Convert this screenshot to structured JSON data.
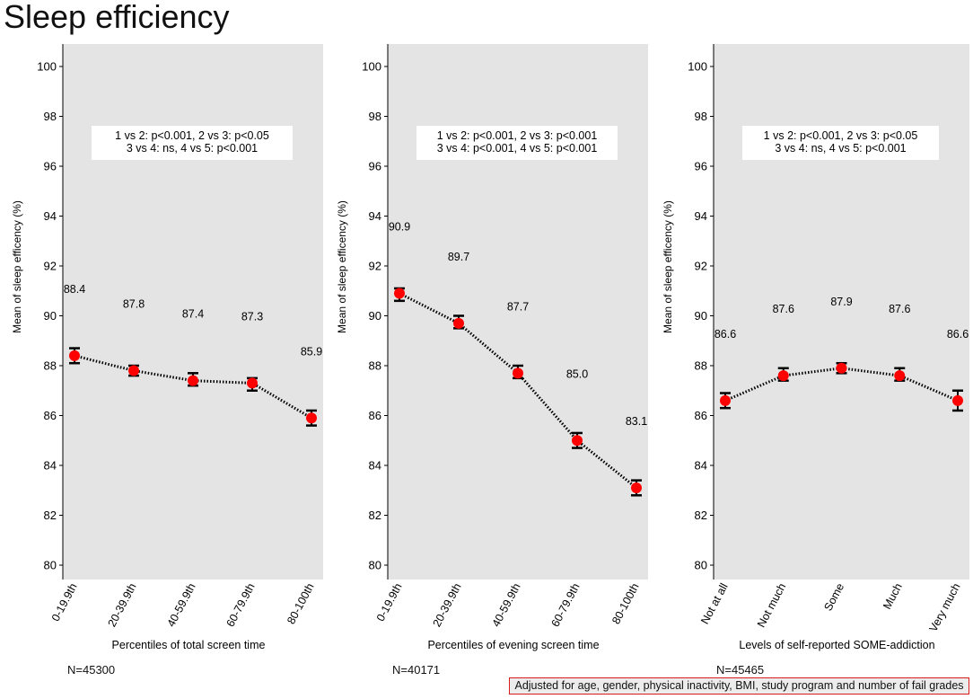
{
  "title": "Sleep efficiency",
  "footnote": "Adjusted for age, gender, physical inactivity, BMI, study program and number of fail grades",
  "colors": {
    "panel_bg": "#e4e4e4",
    "marker": "#ff0000",
    "error_bar": "#000000",
    "footnote_border": "#d81c1c"
  },
  "chart_data": [
    {
      "type": "line",
      "xlabel": "Percentiles of total screen time",
      "ylabel": "Mean of sleep efficency (%)",
      "ylim": [
        80,
        100
      ],
      "yticks": [
        80,
        82,
        84,
        86,
        88,
        90,
        92,
        94,
        96,
        98,
        100
      ],
      "categories": [
        "0-19.9th",
        "20-39.9th",
        "40-59.9th",
        "60-79.9th",
        "80-100th"
      ],
      "values": [
        88.4,
        87.8,
        87.4,
        87.3,
        85.9
      ],
      "value_labels": [
        "88.4",
        "87.8",
        "87.4",
        "87.3",
        "85.9"
      ],
      "ci_low": [
        88.1,
        87.6,
        87.2,
        87.0,
        85.6
      ],
      "ci_high": [
        88.7,
        88.0,
        87.7,
        87.5,
        86.2
      ],
      "annotation": [
        "1 vs 2: p<0.001, 2 vs 3: p<0.05",
        "3 vs 4: ns, 4 vs 5: p<0.001"
      ],
      "n_label": "N=45300"
    },
    {
      "type": "line",
      "xlabel": "Percentiles of evening screen time",
      "ylabel": "Mean of sleep efficency (%)",
      "ylim": [
        80,
        100
      ],
      "yticks": [
        80,
        82,
        84,
        86,
        88,
        90,
        92,
        94,
        96,
        98,
        100
      ],
      "categories": [
        "0-19.9th",
        "20-39.9th",
        "40-59.9th",
        "60-79.9th",
        "80-100th"
      ],
      "values": [
        90.9,
        89.7,
        87.7,
        85.0,
        83.1
      ],
      "value_labels": [
        "90.9",
        "89.7",
        "87.7",
        "85.0",
        "83.1"
      ],
      "ci_low": [
        90.6,
        89.5,
        87.5,
        84.7,
        82.8
      ],
      "ci_high": [
        91.1,
        90.0,
        88.0,
        85.3,
        83.4
      ],
      "annotation": [
        "1 vs 2: p<0.001, 2 vs 3: p<0.001",
        "3 vs 4: p<0.001, 4 vs 5: p<0.001"
      ],
      "n_label": "N=40171"
    },
    {
      "type": "line",
      "xlabel": "Levels of self-reported SOME-addiction",
      "ylabel": "Mean of sleep efficency (%)",
      "ylim": [
        80,
        100
      ],
      "yticks": [
        80,
        82,
        84,
        86,
        88,
        90,
        92,
        94,
        96,
        98,
        100
      ],
      "categories": [
        "Not at all",
        "Not much",
        "Some",
        "Much",
        "Very much"
      ],
      "values": [
        86.6,
        87.6,
        87.9,
        87.6,
        86.6
      ],
      "value_labels": [
        "86.6",
        "87.6",
        "87.9",
        "87.6",
        "86.6"
      ],
      "ci_low": [
        86.3,
        87.4,
        87.7,
        87.4,
        86.2
      ],
      "ci_high": [
        86.9,
        87.9,
        88.1,
        87.9,
        87.0
      ],
      "annotation": [
        "1 vs 2: p<0.001, 2 vs 3: p<0.05",
        "3 vs 4: ns, 4 vs 5: p<0.001"
      ],
      "n_label": "N=45465"
    }
  ]
}
